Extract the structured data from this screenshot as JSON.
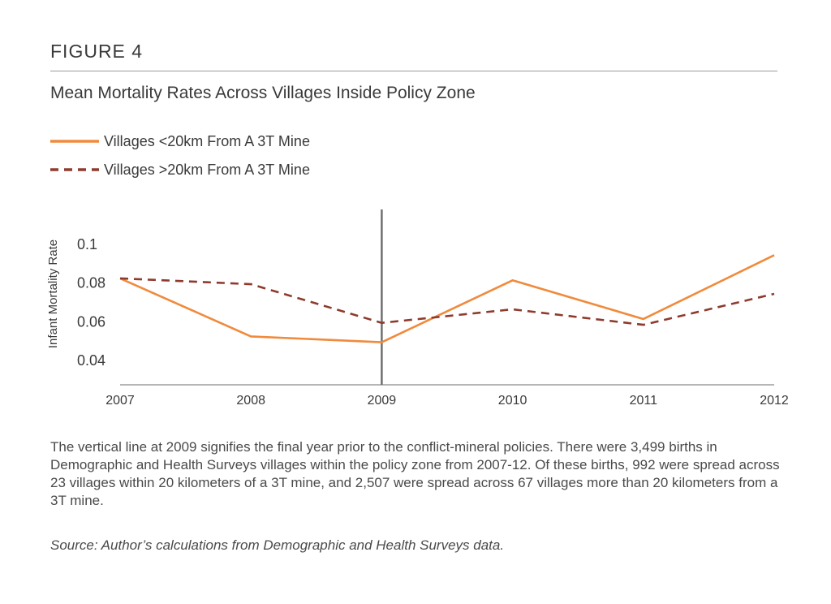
{
  "header": {
    "figure_label": "FIGURE 4"
  },
  "chart_data": {
    "type": "line",
    "title": "Mean Mortality Rates Across Villages Inside Policy Zone",
    "xlabel": "",
    "ylabel": "Infant Mortality Rate",
    "x": [
      "2007",
      "2008",
      "2009",
      "2010",
      "2011",
      "2012"
    ],
    "y_ticks": [
      "0.1",
      "0.08",
      "0.06",
      "0.04"
    ],
    "ylim": [
      0.028,
      0.106
    ],
    "grid": false,
    "legend_position": "top-left",
    "reference_line": {
      "x": "2009"
    },
    "series": [
      {
        "name": "Villages <20km From A 3T Mine",
        "style": "solid",
        "color": "#F08A3C",
        "values": [
          0.082,
          0.052,
          0.049,
          0.081,
          0.061,
          0.094
        ]
      },
      {
        "name": "Villages >20km From A 3T Mine",
        "style": "dashed",
        "color": "#8E3B2E",
        "values": [
          0.082,
          0.079,
          0.059,
          0.066,
          0.058,
          0.074
        ]
      }
    ]
  },
  "caption": "The vertical line at 2009 signifies the final year prior to the conflict-mineral policies. There were 3,499 births in Demographic and Health Surveys villages within the policy zone from 2007-12. Of these births, 992 were spread across 23 villages within 20 kilometers of a 3T mine, and 2,507 were spread across 67 villages more than 20 kilometers from a 3T mine.",
  "source": "Source: Author’s calculations from Demographic and Health Surveys data."
}
